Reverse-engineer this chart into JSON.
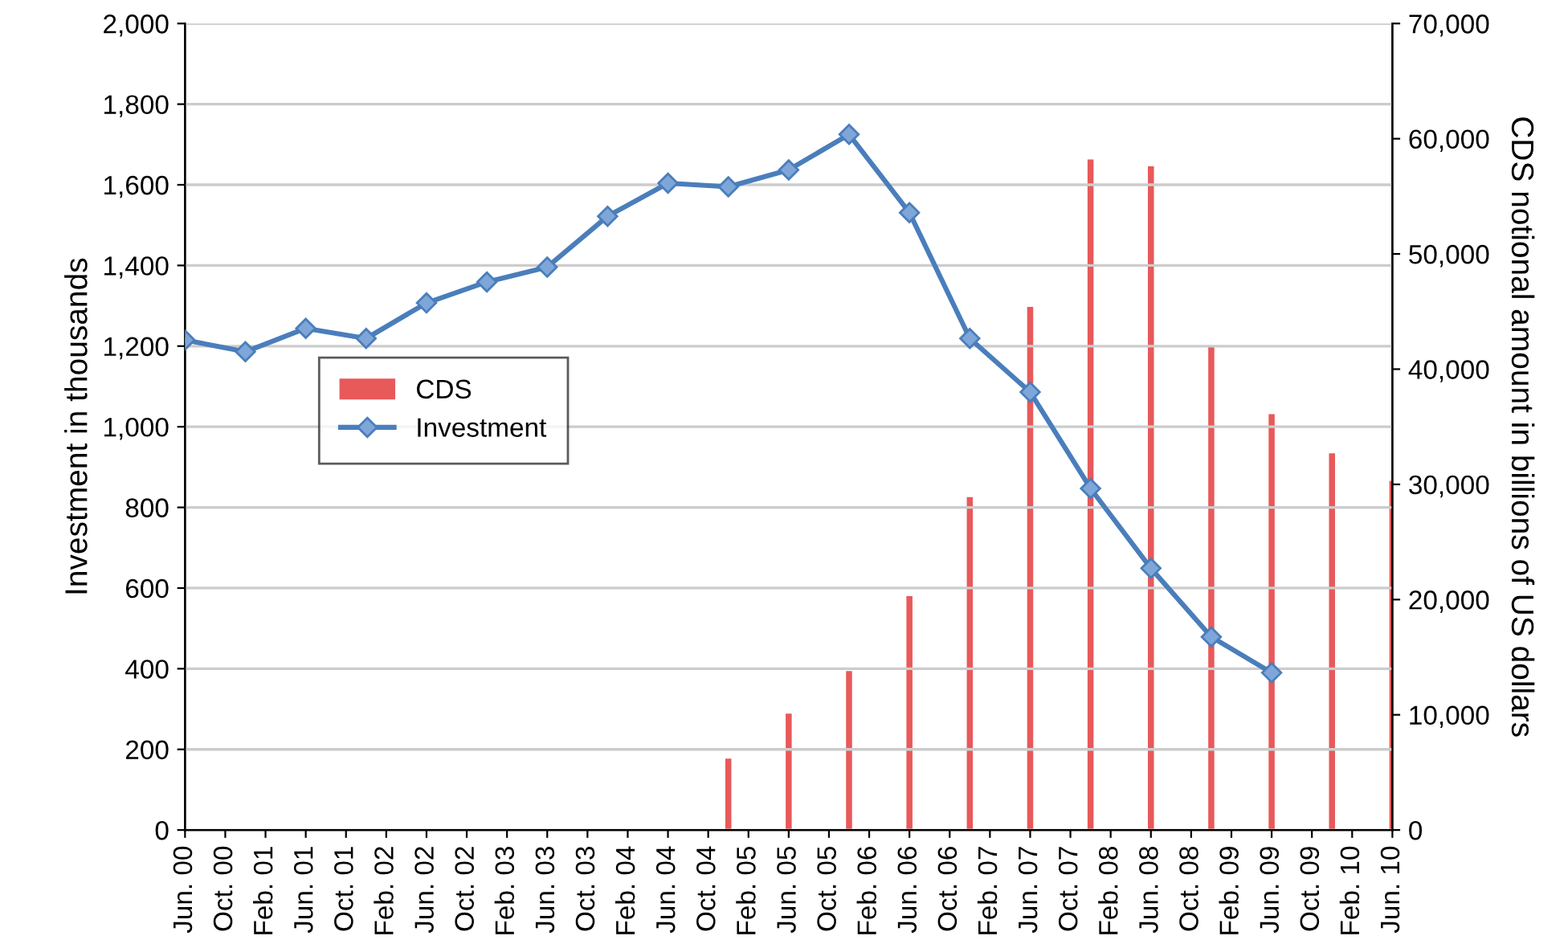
{
  "chart_data": {
    "type": "line",
    "xlim": [
      "2000-06",
      "2010-06"
    ],
    "xticks": [
      {
        "value": "2000-06",
        "label": "Jun. 00"
      },
      {
        "value": "2000-10",
        "label": "Oct. 00"
      },
      {
        "value": "2001-02",
        "label": "Feb. 01"
      },
      {
        "value": "2001-06",
        "label": "Jun. 01"
      },
      {
        "value": "2001-10",
        "label": "Oct. 01"
      },
      {
        "value": "2002-02",
        "label": "Feb. 02"
      },
      {
        "value": "2002-06",
        "label": "Jun. 02"
      },
      {
        "value": "2002-10",
        "label": "Oct. 02"
      },
      {
        "value": "2003-02",
        "label": "Feb. 03"
      },
      {
        "value": "2003-06",
        "label": "Jun. 03"
      },
      {
        "value": "2003-10",
        "label": "Oct. 03"
      },
      {
        "value": "2004-02",
        "label": "Feb. 04"
      },
      {
        "value": "2004-06",
        "label": "Jun. 04"
      },
      {
        "value": "2004-10",
        "label": "Oct. 04"
      },
      {
        "value": "2005-02",
        "label": "Feb. 05"
      },
      {
        "value": "2005-06",
        "label": "Jun. 05"
      },
      {
        "value": "2005-10",
        "label": "Oct. 05"
      },
      {
        "value": "2006-02",
        "label": "Feb. 06"
      },
      {
        "value": "2006-06",
        "label": "Jun. 06"
      },
      {
        "value": "2006-10",
        "label": "Oct. 06"
      },
      {
        "value": "2007-02",
        "label": "Feb. 07"
      },
      {
        "value": "2007-06",
        "label": "Jun. 07"
      },
      {
        "value": "2007-10",
        "label": "Oct. 07"
      },
      {
        "value": "2008-02",
        "label": "Feb. 08"
      },
      {
        "value": "2008-06",
        "label": "Jun. 08"
      },
      {
        "value": "2008-10",
        "label": "Oct. 08"
      },
      {
        "value": "2009-02",
        "label": "Feb. 09"
      },
      {
        "value": "2009-06",
        "label": "Jun. 09"
      },
      {
        "value": "2009-10",
        "label": "Oct. 09"
      },
      {
        "value": "2010-02",
        "label": "Feb. 10"
      },
      {
        "value": "2010-06",
        "label": "Jun. 10"
      }
    ],
    "ylim": [
      0,
      2000
    ],
    "yticks": [
      {
        "value": 0,
        "label": "0"
      },
      {
        "value": 200,
        "label": "200"
      },
      {
        "value": 400,
        "label": "400"
      },
      {
        "value": 600,
        "label": "600"
      },
      {
        "value": 800,
        "label": "800"
      },
      {
        "value": 1000,
        "label": "1,000"
      },
      {
        "value": 1200,
        "label": "1,200"
      },
      {
        "value": 1400,
        "label": "1,400"
      },
      {
        "value": 1600,
        "label": "1,600"
      },
      {
        "value": 1800,
        "label": "1,800"
      },
      {
        "value": 2000,
        "label": "2,000"
      }
    ],
    "y2lim": [
      0,
      70000
    ],
    "y2ticks": [
      {
        "value": 0,
        "label": "0"
      },
      {
        "value": 10000,
        "label": "10,000"
      },
      {
        "value": 20000,
        "label": "20,000"
      },
      {
        "value": 30000,
        "label": "30,000"
      },
      {
        "value": 40000,
        "label": "40,000"
      },
      {
        "value": 50000,
        "label": "50,000"
      },
      {
        "value": 60000,
        "label": "60,000"
      },
      {
        "value": 70000,
        "label": "70,000"
      }
    ],
    "ylabel": "Investment in thousands",
    "y2label": "CDS notional amount in billions of US dollars",
    "grid": "y",
    "legend": "center left",
    "series": [
      {
        "name": "CDS",
        "type": "bar",
        "axis": "y2",
        "color": "#e8595a",
        "x": [
          "2004-12",
          "2005-06",
          "2005-12",
          "2006-06",
          "2006-12",
          "2007-06",
          "2007-12",
          "2008-06",
          "2008-12",
          "2009-06",
          "2009-12",
          "2010-06"
        ],
        "values": [
          6200,
          10100,
          13800,
          20300,
          28900,
          45400,
          58200,
          57600,
          42000,
          36100,
          32700,
          30300
        ]
      },
      {
        "name": "Investment",
        "color": "#4a7ebb",
        "marker": "diamond",
        "line_style": "solid",
        "x": [
          "2000-06",
          "2000-12",
          "2001-06",
          "2001-12",
          "2002-06",
          "2002-12",
          "2003-06",
          "2003-12",
          "2004-06",
          "2004-12",
          "2005-06",
          "2005-12",
          "2006-06",
          "2006-12",
          "2007-06",
          "2007-12",
          "2008-06",
          "2008-12",
          "2009-06"
        ],
        "values": [
          1215,
          1186,
          1244,
          1219,
          1307,
          1359,
          1396,
          1522,
          1604,
          1595,
          1637,
          1725,
          1531,
          1219,
          1086,
          847,
          649,
          479,
          390
        ]
      }
    ]
  }
}
